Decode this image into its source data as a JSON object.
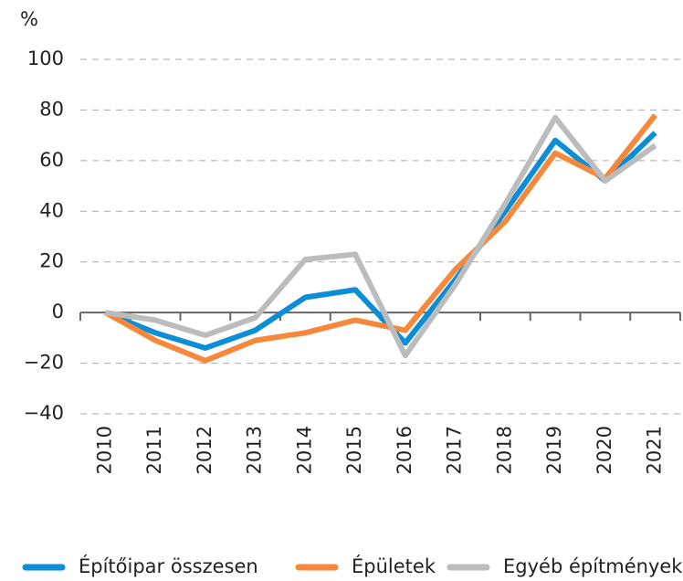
{
  "chart_data": {
    "type": "line",
    "unit": "%",
    "categories": [
      "2010",
      "2011",
      "2012",
      "2013",
      "2014",
      "2015",
      "2016",
      "2017",
      "2018",
      "2019",
      "2020",
      "2021"
    ],
    "series": [
      {
        "name": "Építőipar összesen",
        "color": "#0b8ed6",
        "values": [
          0,
          -8,
          -14,
          -7,
          6,
          9,
          -12,
          13,
          40,
          68,
          52,
          71
        ]
      },
      {
        "name": "Épületek",
        "color": "#f5883a",
        "values": [
          0,
          -11,
          -19,
          -11,
          -8,
          -3,
          -7,
          17,
          36,
          63,
          53,
          78
        ]
      },
      {
        "name": "Egyéb építmények",
        "color": "#bcbcbc",
        "values": [
          0,
          -3,
          -9,
          -2,
          21,
          23,
          -17,
          11,
          43,
          77,
          52,
          66
        ]
      }
    ],
    "ylim": [
      -40,
      100
    ],
    "yticks": [
      {
        "value": -40,
        "label": "−40"
      },
      {
        "value": -20,
        "label": "−20"
      },
      0,
      20,
      40,
      60,
      80,
      100
    ],
    "grid": true
  }
}
